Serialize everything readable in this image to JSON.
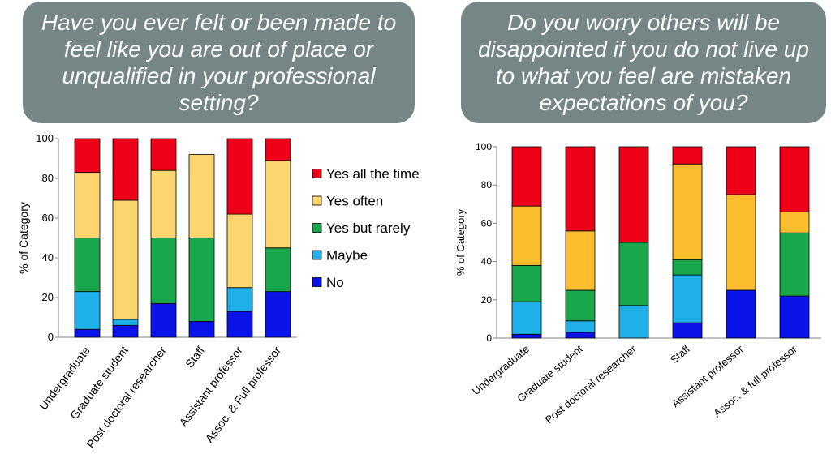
{
  "questions": {
    "left": "Have you ever felt or been made to feel like you are out of place or unqualified in your professional setting?",
    "right": "Do you worry others will be disappointed if you do not live up to what you feel are mistaken expectations of you?"
  },
  "colors": {
    "No": "#0a14e8",
    "Maybe": "#1fb0ea",
    "Yes but rarely": "#1aa74b",
    "Yes often": "#fdd56f",
    "Yes often (right chart)": "#fcbd2e",
    "Yes all the time": "#ee0018"
  },
  "chart_data": [
    {
      "type": "bar",
      "stacked": true,
      "title": "Have you ever felt or been made to feel like you are out of place or unqualified in your professional setting?",
      "ylabel": "% of Category",
      "xlabel": "",
      "ylim": [
        0,
        100
      ],
      "yticks": [
        "0",
        "20",
        "40",
        "60",
        "80",
        "100"
      ],
      "grid": false,
      "legend_position": "right",
      "categories": [
        "Undergraduate",
        "Graduate student",
        "Post doctoral researcher",
        "Staff",
        "Assistant professor",
        "Assoc. & Full professor"
      ],
      "series": [
        {
          "name": "No",
          "color": "#0a14e8",
          "values": [
            4,
            6,
            17,
            8,
            13,
            23
          ]
        },
        {
          "name": "Maybe",
          "color": "#1fb0ea",
          "values": [
            19,
            3,
            0,
            0,
            12,
            0
          ]
        },
        {
          "name": "Yes but rarely",
          "color": "#1aa74b",
          "values": [
            27,
            0,
            33,
            42,
            0,
            22
          ]
        },
        {
          "name": "Yes often",
          "color": "#fdd56f",
          "values": [
            33,
            60,
            34,
            42,
            37,
            44
          ]
        },
        {
          "name": "Yes all the time",
          "color": "#ee0018",
          "values": [
            17,
            31,
            16,
            0,
            38,
            11
          ]
        }
      ]
    },
    {
      "type": "bar",
      "stacked": true,
      "title": "Do you worry others will be disappointed if you do not live up to what you feel are mistaken expectations of you?",
      "ylabel": "% of Category",
      "xlabel": "",
      "ylim": [
        0,
        100
      ],
      "yticks": [
        "0",
        "20",
        "40",
        "60",
        "80",
        "100"
      ],
      "grid": false,
      "legend_position": "none",
      "categories": [
        "Undergraduate",
        "Graduate student",
        "Post doctoral researcher",
        "Staff",
        "Assistant professor",
        "Assoc. & full professor"
      ],
      "series": [
        {
          "name": "No",
          "color": "#0a14e8",
          "values": [
            2,
            3,
            0,
            8,
            25,
            22
          ]
        },
        {
          "name": "Maybe",
          "color": "#1fb0ea",
          "values": [
            17,
            6,
            17,
            25,
            0,
            0
          ]
        },
        {
          "name": "Yes but rarely",
          "color": "#1aa74b",
          "values": [
            19,
            16,
            33,
            8,
            0,
            33
          ]
        },
        {
          "name": "Yes often",
          "color": "#fcbd2e",
          "values": [
            31,
            31,
            0,
            50,
            50,
            11
          ]
        },
        {
          "name": "Yes all the time",
          "color": "#ee0018",
          "values": [
            31,
            44,
            50,
            9,
            25,
            34
          ]
        }
      ]
    }
  ]
}
